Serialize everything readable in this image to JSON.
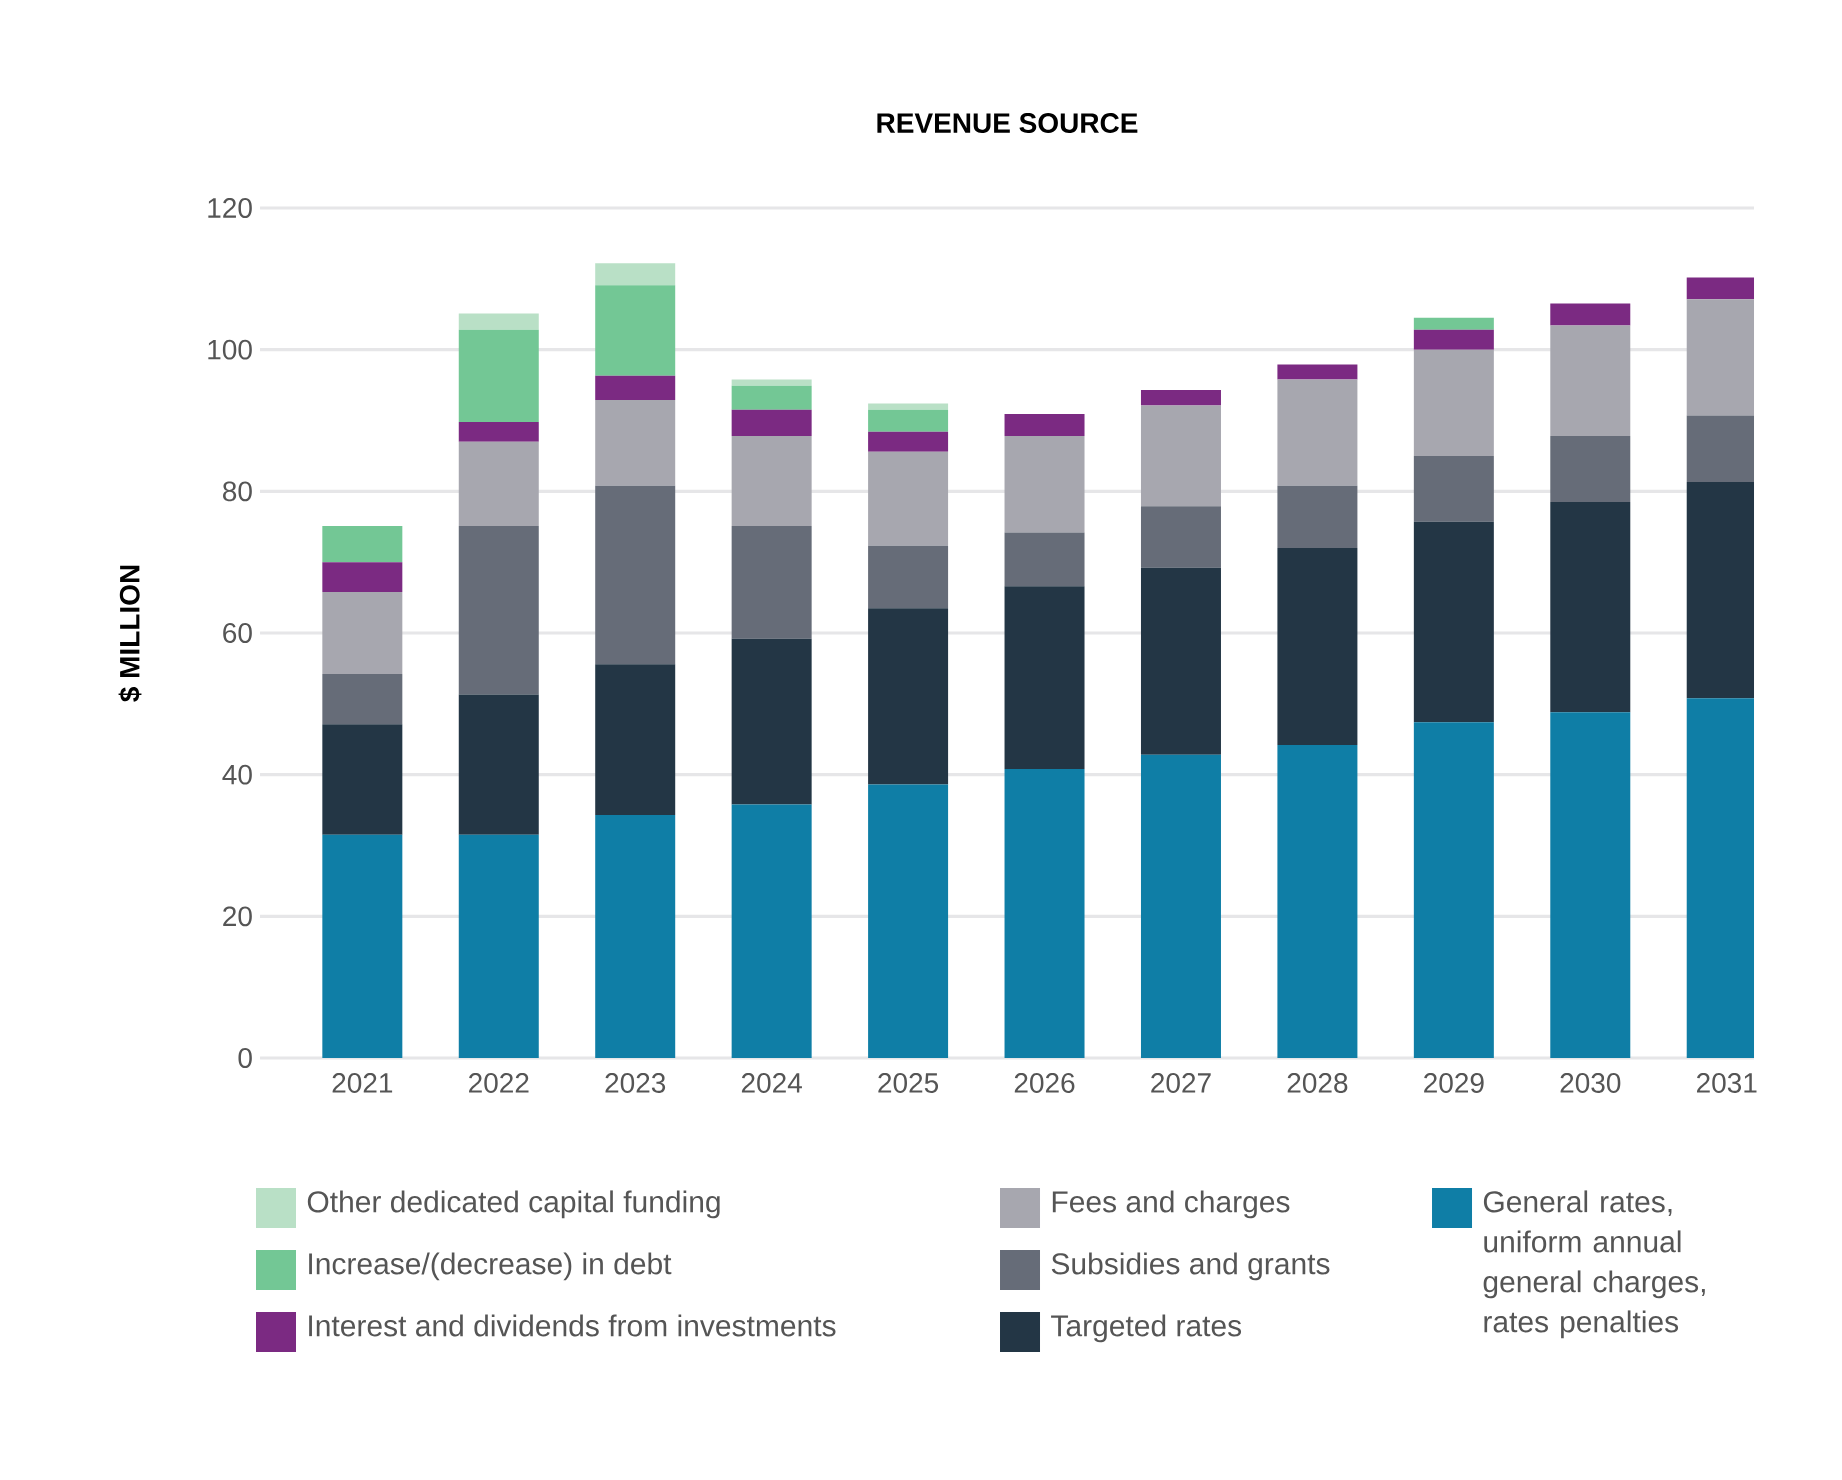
{
  "chart_data": {
    "type": "bar",
    "stacked": true,
    "title": "REVENUE SOURCE",
    "ylabel": "$ MILLION",
    "categories": [
      "2021",
      "2022",
      "2023",
      "2024",
      "2025",
      "2026",
      "2027",
      "2028",
      "2029",
      "2030",
      "2031"
    ],
    "ylim": [
      0,
      120
    ],
    "yticks": [
      0,
      20,
      40,
      60,
      80,
      100,
      120
    ],
    "grid": "y",
    "legend": "bottom",
    "series": [
      {
        "name": "General rates, uniform annual general charges, rates penalties",
        "color": "#0f7ea6",
        "values": [
          31.5,
          31.5,
          34.3,
          35.8,
          38.6,
          40.8,
          42.8,
          44.2,
          47.4,
          48.8,
          50.8
        ]
      },
      {
        "name": "Targeted rates",
        "color": "#233645",
        "values": [
          15.6,
          19.8,
          21.3,
          23.4,
          24.9,
          25.8,
          26.4,
          27.8,
          28.3,
          29.7,
          30.5
        ]
      },
      {
        "name": "Subsidies and grants",
        "color": "#666c78",
        "values": [
          7.1,
          23.8,
          25.2,
          15.9,
          8.8,
          7.6,
          8.7,
          8.8,
          9.3,
          9.3,
          9.4
        ]
      },
      {
        "name": "Fees and charges",
        "color": "#a7a7af",
        "values": [
          11.6,
          11.9,
          12.1,
          12.7,
          13.3,
          13.6,
          14.2,
          15.0,
          15.0,
          15.6,
          16.4
        ]
      },
      {
        "name": "Interest and dividends from investments",
        "color": "#7b2a82",
        "values": [
          4.2,
          2.8,
          3.4,
          3.7,
          2.8,
          3.1,
          2.2,
          2.1,
          2.8,
          3.1,
          3.1
        ]
      },
      {
        "name": "Increase/(decrease) in debt",
        "color": "#73c795",
        "values": [
          5.1,
          13.0,
          12.8,
          3.4,
          3.1,
          0,
          0,
          0,
          1.7,
          0,
          0
        ]
      },
      {
        "name": "Other dedicated capital funding",
        "color": "#b9e0c6",
        "values": [
          0,
          2.3,
          3.1,
          0.9,
          0.9,
          0,
          0,
          0,
          0,
          0,
          0
        ]
      }
    ]
  }
}
